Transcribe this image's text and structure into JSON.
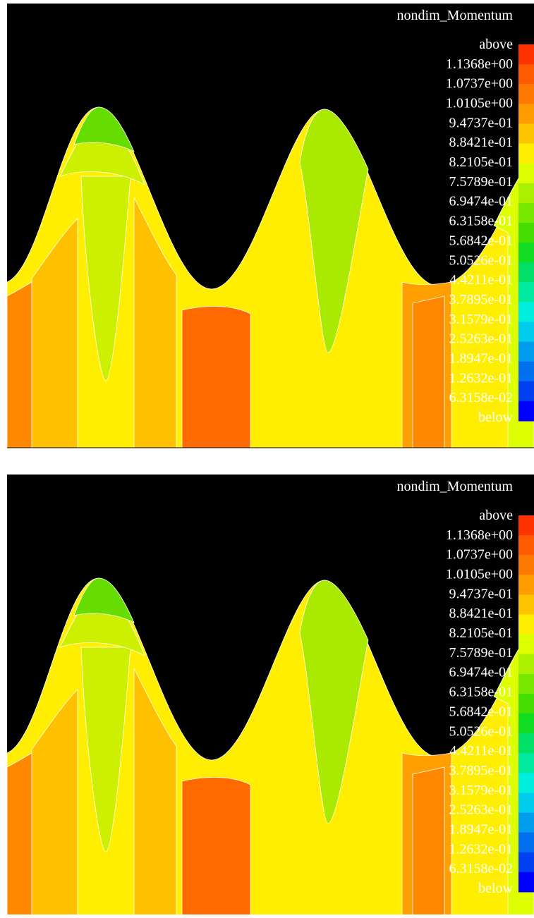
{
  "panels": [
    {
      "title": "nondim_Momentum",
      "legend": [
        "above",
        "1.1368e+00",
        "1.0737e+00",
        "1.0105e+00",
        "9.4737e-01",
        "8.8421e-01",
        "8.2105e-01",
        "7.5789e-01",
        "6.9474e-01",
        "6.3158e-01",
        "5.6842e-01",
        "5.0526e-01",
        "4.4211e-01",
        "3.7895e-01",
        "3.1579e-01",
        "2.5263e-01",
        "1.8947e-01",
        "1.2632e-01",
        "6.3158e-02",
        "below"
      ]
    },
    {
      "title": "nondim_Momentum",
      "legend": [
        "above",
        "1.1368e+00",
        "1.0737e+00",
        "1.0105e+00",
        "9.4737e-01",
        "8.8421e-01",
        "8.2105e-01",
        "7.5789e-01",
        "6.9474e-01",
        "6.3158e-01",
        "5.6842e-01",
        "5.0526e-01",
        "4.4211e-01",
        "3.7895e-01",
        "3.1579e-01",
        "2.5263e-01",
        "1.8947e-01",
        "1.2632e-01",
        "6.3158e-02",
        "below"
      ]
    }
  ],
  "colorbar": [
    "#ff3300",
    "#ff5a00",
    "#ff7a00",
    "#ff9c00",
    "#ffc400",
    "#ffee00",
    "#ddff00",
    "#aaf000",
    "#77e800",
    "#44dd00",
    "#11dd22",
    "#00e066",
    "#00eaa0",
    "#00eedd",
    "#00ccee",
    "#009cee",
    "#0070ee",
    "#0040f0",
    "#0000ff"
  ]
}
